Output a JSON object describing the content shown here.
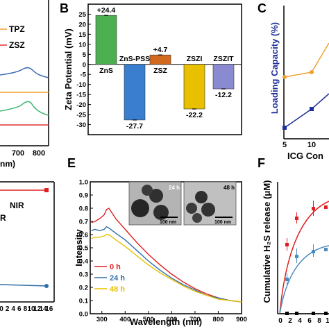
{
  "figure": {
    "panel_a_fragments": {
      "legend": [
        "TPZ",
        "ZSZ"
      ],
      "x_ticks": [
        "700",
        "800"
      ],
      "x_label_fragment": "nm)",
      "colors": {
        "tpz": "#f0a030",
        "zsz": "#e03030",
        "blue": "#3b6db0",
        "green": "#3cb371"
      }
    },
    "panel_d_fragments": {
      "texts": [
        "NIR",
        "R"
      ],
      "x_ticks": [
        "0",
        "2",
        "4",
        "6",
        "8",
        "10",
        "12",
        "14",
        "16"
      ],
      "colors": {
        "red": "#e02020",
        "blue": "#2f6fa8"
      }
    },
    "panel_c": {
      "title": "C",
      "y_label": "Loading Capacity (%)",
      "x_label_fragment": "ICG Con",
      "x_ticks": [
        "5",
        "10"
      ],
      "colors": {
        "orange": "#f0a030",
        "navy": "#1f2f9a"
      }
    },
    "panel_f": {
      "title": "F",
      "y_label": "Cumulative H₂S release (μM)",
      "x_ticks": [
        "0",
        "2",
        "4",
        "6",
        "8",
        "1"
      ],
      "colors": {
        "red": "#e02020",
        "blue": "#4a8cc0",
        "black": "#000000"
      }
    },
    "panel_e": {
      "title": "E",
      "inset_labels": [
        "24 h",
        "48 h"
      ],
      "scale_bars": [
        "100 nm",
        "100 nm"
      ]
    }
  },
  "chart_data": [
    {
      "type": "bar",
      "panel": "B",
      "ylabel": "Zeta Potential (mV)",
      "ylim": [
        -35,
        30
      ],
      "yticks": [
        "25",
        "20",
        "15",
        "10",
        "5",
        "0",
        "-5",
        "-10",
        "-15",
        "-20",
        "-25",
        "-30"
      ],
      "categories": [
        "ZnS",
        "ZnS-PSS",
        "ZSZ",
        "ZSZI",
        "ZSZIT"
      ],
      "values": [
        24.4,
        -27.7,
        4.7,
        -22.2,
        -12.2
      ],
      "value_labels": [
        "+24.4",
        "-27.7",
        "+4.7",
        "-22.2",
        "-12.2"
      ],
      "colors": [
        "#4caf50",
        "#3a7ecf",
        "#d2691e",
        "#e8c000",
        "#8a8ad0"
      ]
    },
    {
      "type": "line",
      "panel": "E",
      "xlabel": "Wavelength (nm)",
      "ylabel": "Intensity",
      "xlim": [
        250,
        900
      ],
      "ylim": [
        0.0,
        1.0
      ],
      "xticks": [
        "300",
        "400",
        "500",
        "600",
        "700",
        "800",
        "900"
      ],
      "yticks": [
        "0.0",
        "0.1",
        "0.2",
        "0.3",
        "0.4",
        "0.5",
        "0.6",
        "0.7",
        "0.8",
        "0.9",
        "1.0"
      ],
      "x": [
        255,
        270,
        290,
        310,
        320,
        330,
        345,
        360,
        400,
        450,
        500,
        550,
        600,
        650,
        700,
        750,
        800,
        850,
        900
      ],
      "series": [
        {
          "name": "0 h",
          "color": "#e02020",
          "values": [
            0.69,
            0.7,
            0.72,
            0.75,
            0.79,
            0.8,
            0.76,
            0.72,
            0.64,
            0.54,
            0.45,
            0.37,
            0.3,
            0.24,
            0.19,
            0.15,
            0.12,
            0.1,
            0.09
          ]
        },
        {
          "name": "24 h",
          "color": "#2f6fa8",
          "values": [
            0.63,
            0.64,
            0.63,
            0.64,
            0.66,
            0.65,
            0.63,
            0.61,
            0.56,
            0.48,
            0.4,
            0.33,
            0.27,
            0.22,
            0.18,
            0.14,
            0.12,
            0.1,
            0.09
          ]
        },
        {
          "name": "48 h",
          "color": "#e8c000",
          "values": [
            0.57,
            0.58,
            0.58,
            0.59,
            0.6,
            0.6,
            0.58,
            0.56,
            0.51,
            0.44,
            0.37,
            0.31,
            0.26,
            0.21,
            0.17,
            0.14,
            0.11,
            0.1,
            0.09
          ]
        }
      ]
    }
  ]
}
